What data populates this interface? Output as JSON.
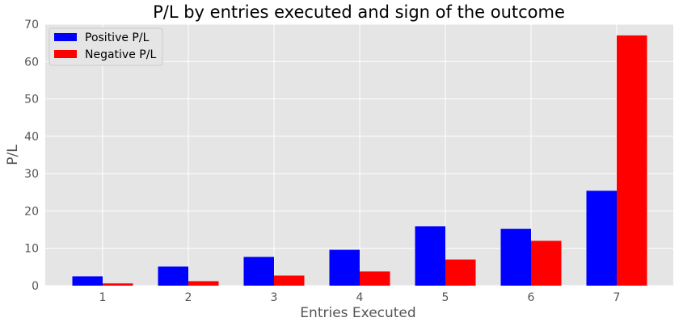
{
  "chart_data": {
    "type": "bar",
    "title": "P/L by entries executed and sign of the outcome",
    "xlabel": "Entries Executed",
    "ylabel": "P/L",
    "categories": [
      "1",
      "2",
      "3",
      "4",
      "5",
      "6",
      "7"
    ],
    "series": [
      {
        "name": "Positive P/L",
        "color": "#0000ff",
        "values": [
          2.5,
          5.1,
          7.7,
          9.6,
          15.9,
          15.2,
          25.4
        ]
      },
      {
        "name": "Negative P/L",
        "color": "#ff0000",
        "values": [
          0.6,
          1.2,
          2.7,
          3.8,
          7.0,
          12.0,
          67.0
        ]
      }
    ],
    "ylim": [
      0,
      70
    ],
    "yticks": [
      0,
      10,
      20,
      30,
      40,
      50,
      60,
      70
    ],
    "grid": true,
    "legend_position": "top-left",
    "background_color": "#e5e5e5",
    "grid_color": "#ffffff"
  }
}
